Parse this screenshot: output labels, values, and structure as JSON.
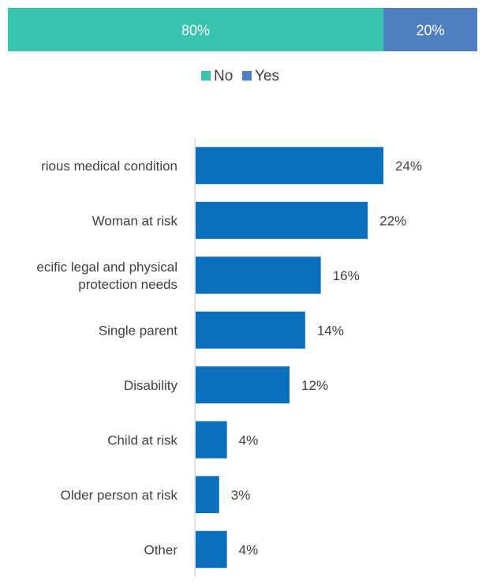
{
  "chart_data": [
    {
      "type": "bar",
      "orientation": "horizontal-stacked",
      "series": [
        {
          "name": "No",
          "values": [
            80
          ],
          "color": "#36C4AD"
        },
        {
          "name": "Yes",
          "values": [
            20
          ],
          "color": "#4F7FC0"
        }
      ],
      "data_labels": [
        "80%",
        "20%"
      ],
      "legend_placement": "below",
      "grid": false
    },
    {
      "type": "bar",
      "orientation": "horizontal",
      "categories": [
        "Serious medical condition",
        "Woman at risk",
        "Specific legal and physical protection needs",
        "Single parent",
        "Disability",
        "Child at risk",
        "Older person at risk",
        "Other"
      ],
      "category_display": [
        "rious medical condition",
        "Woman at risk",
        "ecific legal and physical\nprotection needs",
        "Single parent",
        "Disability",
        "Child at risk",
        "Older person at risk",
        "Other"
      ],
      "values": [
        24,
        22,
        16,
        14,
        12,
        4,
        3,
        4
      ],
      "labels": [
        "24%",
        "22%",
        "16%",
        "14%",
        "12%",
        "4%",
        "3%",
        "4%"
      ],
      "unit": "%",
      "color": "#0A70BE",
      "grid": false
    }
  ]
}
